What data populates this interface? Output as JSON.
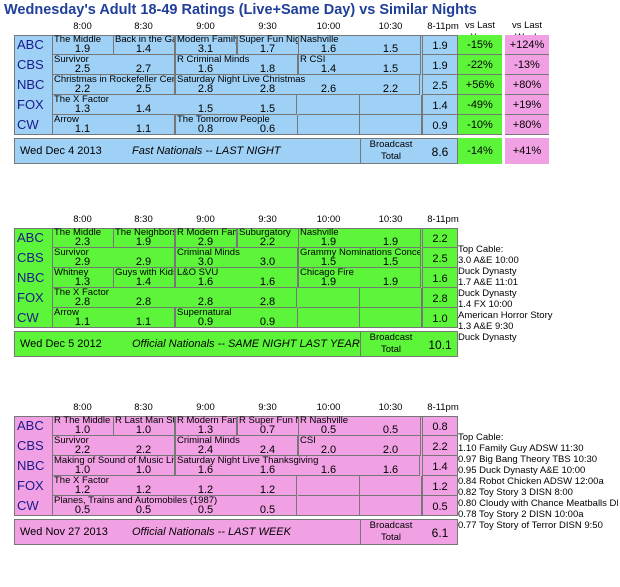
{
  "title": "Wednesday's Adult 18-49 Ratings (Live+Same Day) vs Similar Nights",
  "colors": {
    "blue": "#9fd0f6",
    "green": "#5df53a",
    "pink": "#f2a0e4",
    "grid": "#777777"
  },
  "compare_headers": {
    "vs_last_year": "vs Last\nYear",
    "vs_last_week": "vs Last\nWeek"
  },
  "chart_data": [
    {
      "type": "table",
      "footer_date": "Wed Dec 4 2013",
      "footer_caption": "Fast Nationals -- LAST NIGHT",
      "total_label": "Broadcast\nTotal",
      "total": "8.6",
      "total_vs_last_year": "-14%",
      "total_vs_last_week": "+41%",
      "time_slots": [
        "8:00",
        "8:30",
        "9:00",
        "9:30",
        "10:00",
        "10:30",
        "8-11pm"
      ],
      "networks": [
        {
          "name": "ABC",
          "shows": [
            {
              "title": "The Middle",
              "start": 0,
              "span": 1
            },
            {
              "title": "Back in the Game",
              "start": 1,
              "span": 1
            },
            {
              "title": "Modern Family",
              "start": 2,
              "span": 1
            },
            {
              "title": "Super Fun Night",
              "start": 3,
              "span": 1
            },
            {
              "title": "Nashville",
              "start": 4,
              "span": 2
            }
          ],
          "ratings": [
            "1.9",
            "1.4",
            "3.1",
            "1.7",
            "1.6",
            "1.5"
          ],
          "total": "1.9",
          "vs_last_year": "-15%",
          "vs_last_week": "+124%"
        },
        {
          "name": "CBS",
          "shows": [
            {
              "title": "Survivor",
              "start": 0,
              "span": 2
            },
            {
              "title": "R Criminal Minds",
              "start": 2,
              "span": 2
            },
            {
              "title": "R CSI",
              "start": 4,
              "span": 2
            }
          ],
          "ratings": [
            "2.5",
            "2.7",
            "1.6",
            "1.8",
            "1.4",
            "1.5"
          ],
          "total": "1.9",
          "vs_last_year": "-22%",
          "vs_last_week": "-13%"
        },
        {
          "name": "NBC",
          "shows": [
            {
              "title": "Christmas in Rockefeller Center",
              "start": 0,
              "span": 2
            },
            {
              "title": "Saturday Night Live Christmas",
              "start": 2,
              "span": 4
            }
          ],
          "ratings": [
            "2.2",
            "2.5",
            "2.8",
            "2.8",
            "2.6",
            "2.2"
          ],
          "total": "2.5",
          "vs_last_year": "+56%",
          "vs_last_week": "+80%"
        },
        {
          "name": "FOX",
          "shows": [
            {
              "title": "The X Factor",
              "start": 0,
              "span": 4
            }
          ],
          "ratings": [
            "1.3",
            "1.4",
            "1.5",
            "1.5",
            "",
            ""
          ],
          "total": "1.4",
          "vs_last_year": "-49%",
          "vs_last_week": "+19%"
        },
        {
          "name": "CW",
          "shows": [
            {
              "title": "Arrow",
              "start": 0,
              "span": 2
            },
            {
              "title": "The Tomorrow People",
              "start": 2,
              "span": 2
            }
          ],
          "ratings": [
            "1.1",
            "1.1",
            "0.8",
            "0.6",
            "",
            ""
          ],
          "total": "0.9",
          "vs_last_year": "-10%",
          "vs_last_week": "+80%"
        }
      ],
      "side_notes": []
    },
    {
      "type": "table",
      "footer_date": "Wed Dec 5 2012",
      "footer_caption": "Official Nationals -- SAME NIGHT LAST YEAR",
      "total_label": "Broadcast\nTotal",
      "total": "10.1",
      "time_slots": [
        "8:00",
        "8:30",
        "9:00",
        "9:30",
        "10:00",
        "10:30",
        "8-11pm"
      ],
      "networks": [
        {
          "name": "ABC",
          "shows": [
            {
              "title": "The Middle",
              "start": 0,
              "span": 1
            },
            {
              "title": "The Neighbors",
              "start": 1,
              "span": 1
            },
            {
              "title": "R Modern Family",
              "start": 2,
              "span": 1
            },
            {
              "title": "Suburgatory",
              "start": 3,
              "span": 1
            },
            {
              "title": "Nashville",
              "start": 4,
              "span": 2
            }
          ],
          "ratings": [
            "2.3",
            "1.9",
            "2.9",
            "2.2",
            "1.9",
            "1.9"
          ],
          "total": "2.2"
        },
        {
          "name": "CBS",
          "shows": [
            {
              "title": "Survivor",
              "start": 0,
              "span": 2
            },
            {
              "title": "Criminal Minds",
              "start": 2,
              "span": 2
            },
            {
              "title": "Grammy Nominations Concert Live!",
              "start": 4,
              "span": 2
            }
          ],
          "ratings": [
            "2.9",
            "2.9",
            "3.0",
            "3.0",
            "1.5",
            "1.5"
          ],
          "total": "2.5"
        },
        {
          "name": "NBC",
          "shows": [
            {
              "title": "Whitney",
              "start": 0,
              "span": 1
            },
            {
              "title": "Guys with Kids",
              "start": 1,
              "span": 1
            },
            {
              "title": "L&O SVU",
              "start": 2,
              "span": 2
            },
            {
              "title": "Chicago Fire",
              "start": 4,
              "span": 2
            }
          ],
          "ratings": [
            "1.3",
            "1.4",
            "1.6",
            "1.6",
            "1.9",
            "1.9"
          ],
          "total": "1.6"
        },
        {
          "name": "FOX",
          "shows": [
            {
              "title": "The X Factor",
              "start": 0,
              "span": 4
            }
          ],
          "ratings": [
            "2.8",
            "2.8",
            "2.8",
            "2.8",
            "",
            ""
          ],
          "total": "2.8"
        },
        {
          "name": "CW",
          "shows": [
            {
              "title": "Arrow",
              "start": 0,
              "span": 2
            },
            {
              "title": "Supernatural",
              "start": 2,
              "span": 2
            }
          ],
          "ratings": [
            "1.1",
            "1.1",
            "0.9",
            "0.9",
            "",
            ""
          ],
          "total": "1.0"
        }
      ],
      "side_notes": [
        "Top Cable:",
        "3.0 A&E 10:00",
        "Duck Dynasty",
        "1.7 A&E 11:01",
        "Duck Dynasty",
        "1.4 FX 10:00",
        "American Horror Story",
        "1.3 A&E 9:30",
        "Duck Dynasty"
      ]
    },
    {
      "type": "table",
      "footer_date": "Wed Nov 27 2013",
      "footer_caption": "Official Nationals -- LAST WEEK",
      "total_label": "Broadcast\nTotal",
      "total": "6.1",
      "time_slots": [
        "8:00",
        "8:30",
        "9:00",
        "9:30",
        "10:00",
        "10:30",
        "8-11pm"
      ],
      "networks": [
        {
          "name": "ABC",
          "shows": [
            {
              "title": "R The Middle",
              "start": 0,
              "span": 1
            },
            {
              "title": "R Last Man Standing",
              "start": 1,
              "span": 1
            },
            {
              "title": "R Modern Family",
              "start": 2,
              "span": 1
            },
            {
              "title": "R Super Fun Night",
              "start": 3,
              "span": 1
            },
            {
              "title": "R Nashville",
              "start": 4,
              "span": 2
            }
          ],
          "ratings": [
            "1.0",
            "1.0",
            "1.3",
            "0.7",
            "0.5",
            "0.5"
          ],
          "total": "0.8"
        },
        {
          "name": "CBS",
          "shows": [
            {
              "title": "Survivor",
              "start": 0,
              "span": 2
            },
            {
              "title": "Criminal Minds",
              "start": 2,
              "span": 2
            },
            {
              "title": "CSI",
              "start": 4,
              "span": 2
            }
          ],
          "ratings": [
            "2.2",
            "2.2",
            "2.4",
            "2.4",
            "2.0",
            "2.0"
          ],
          "total": "2.2"
        },
        {
          "name": "NBC",
          "shows": [
            {
              "title": "Making of Sound of Music Live",
              "start": 0,
              "span": 2
            },
            {
              "title": "Saturday Night Live Thanksgiving",
              "start": 2,
              "span": 4
            }
          ],
          "ratings": [
            "1.0",
            "1.0",
            "1.6",
            "1.6",
            "1.6",
            "1.6"
          ],
          "total": "1.4"
        },
        {
          "name": "FOX",
          "shows": [
            {
              "title": "The X Factor",
              "start": 0,
              "span": 4
            }
          ],
          "ratings": [
            "1.2",
            "1.2",
            "1.2",
            "1.2",
            "",
            ""
          ],
          "total": "1.2"
        },
        {
          "name": "CW",
          "shows": [
            {
              "title": "Planes, Trains and Automobiles (1987)",
              "start": 0,
              "span": 4
            }
          ],
          "ratings": [
            "0.5",
            "0.5",
            "0.5",
            "0.5",
            "",
            ""
          ],
          "total": "0.5"
        }
      ],
      "side_notes": [
        "Top Cable:",
        "1.10 Family Guy ADSW 11:30",
        "0.97 Big Bang Theory TBS 10:30",
        "0.95 Duck Dynasty A&E 10:00",
        "0.84 Robot Chicken ADSW 12:00a",
        "0.82 Toy Story 3 DISN 8:00",
        "0.80 Cloudy with Chance Meatballs DISN",
        "0.78 Toy Story 2 DISN 10:00a",
        "0.77 Toy Story of Terror DISN 9:50"
      ]
    }
  ]
}
